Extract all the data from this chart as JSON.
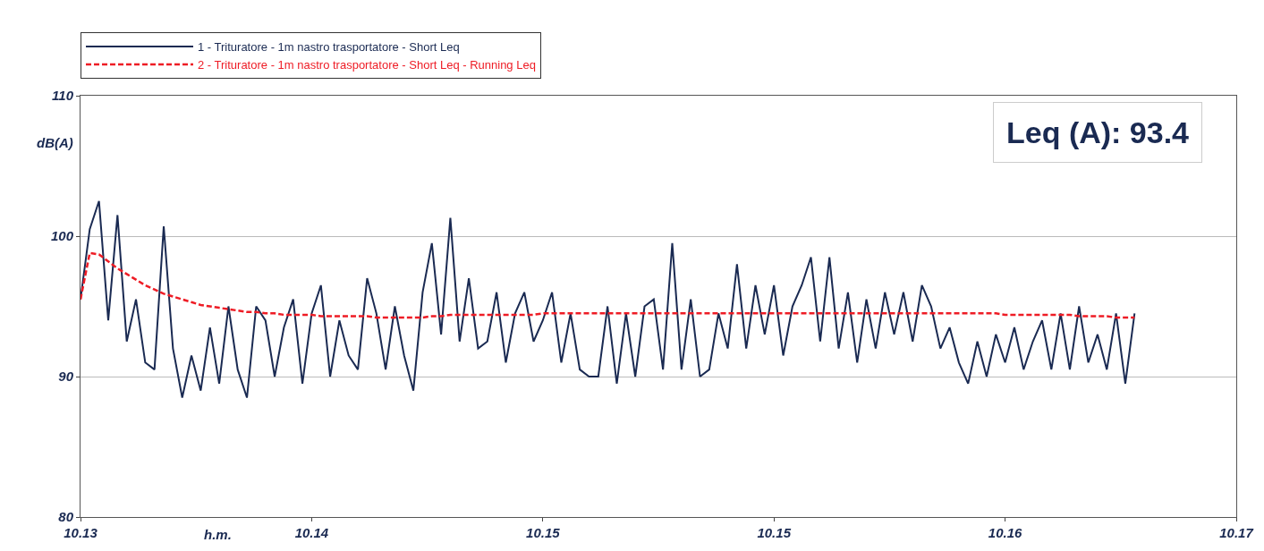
{
  "chart_data": {
    "type": "line",
    "xlabel": "h.m.",
    "ylabel": "dB(A)",
    "annotations": [
      "Leq (A): 93.4"
    ],
    "categories": [
      "10.13",
      null,
      null,
      null,
      null,
      null,
      null,
      null,
      null,
      null,
      null,
      null,
      null,
      null,
      null,
      null,
      null,
      null,
      null,
      null,
      null,
      null,
      null,
      null,
      null,
      "10.14",
      null,
      null,
      null,
      null,
      null,
      null,
      null,
      null,
      null,
      null,
      null,
      null,
      null,
      null,
      null,
      null,
      null,
      null,
      null,
      null,
      null,
      null,
      null,
      null,
      "10.15",
      null,
      null,
      null,
      null,
      null,
      null,
      null,
      null,
      null,
      null,
      null,
      null,
      null,
      null,
      null,
      null,
      null,
      null,
      null,
      null,
      null,
      null,
      null,
      null,
      "10.15",
      null,
      null,
      null,
      null,
      null,
      null,
      null,
      null,
      null,
      null,
      null,
      null,
      null,
      null,
      null,
      null,
      null,
      null,
      null,
      null,
      null,
      null,
      null,
      null,
      "10.16",
      null,
      null,
      null,
      null,
      null,
      null,
      null,
      null,
      null,
      null,
      null,
      null,
      null,
      null,
      null,
      null,
      null,
      null,
      null,
      null,
      null,
      null,
      null,
      null,
      "10.17"
    ],
    "ylim": [
      80,
      110
    ],
    "yticks": [
      80,
      90,
      100,
      110
    ],
    "grid": "y",
    "legend": "top",
    "marker": "none",
    "series": [
      {
        "name": "1 - Trituratore - 1m nastro trasportatore - Short Leq",
        "color": "#1a2a52",
        "line_style": "solid",
        "values": [
          95.5,
          100.5,
          102.5,
          94,
          101.5,
          92.5,
          95.5,
          91,
          90.5,
          100.7,
          92,
          88.5,
          91.5,
          89,
          93.5,
          89.5,
          95,
          90.5,
          88.5,
          95,
          94,
          90,
          93.5,
          95.5,
          89.5,
          94.5,
          96.5,
          90,
          94,
          91.5,
          90.5,
          97,
          94.5,
          90.5,
          95,
          91.5,
          89,
          96,
          99.5,
          93,
          101.3,
          92.5,
          97,
          92,
          92.5,
          96,
          91,
          94.5,
          96,
          92.5,
          94,
          96,
          91,
          94.5,
          90.5,
          90,
          90,
          95,
          89.5,
          94.5,
          90,
          95,
          95.5,
          90.5,
          99.5,
          90.5,
          95.5,
          90,
          90.5,
          94.5,
          92,
          98,
          92,
          96.5,
          93,
          96.5,
          91.5,
          95,
          96.5,
          98.5,
          92.5,
          98.5,
          92,
          96,
          91,
          95.5,
          92,
          96,
          93,
          96,
          92.5,
          96.5,
          95,
          92,
          93.5,
          91,
          89.5,
          92.5,
          90,
          93,
          91,
          93.5,
          90.5,
          92.5,
          94,
          90.5,
          94.5,
          90.5,
          95,
          91,
          93,
          90.5,
          94.5,
          89.5,
          94.5,
          null,
          null,
          null,
          null,
          null,
          null,
          null,
          null,
          null,
          null,
          null
        ]
      },
      {
        "name": "2 - Trituratore - 1m nastro trasportatore - Short Leq - Running Leq",
        "color": "#ee1c25",
        "line_style": "dashed",
        "values": [
          95.5,
          98.8,
          98.7,
          98.2,
          97.7,
          97.3,
          96.9,
          96.5,
          96.2,
          95.9,
          95.7,
          95.5,
          95.3,
          95.1,
          95.0,
          94.9,
          94.8,
          94.7,
          94.6,
          94.6,
          94.5,
          94.5,
          94.4,
          94.4,
          94.4,
          94.4,
          94.3,
          94.3,
          94.3,
          94.3,
          94.3,
          94.3,
          94.2,
          94.2,
          94.2,
          94.2,
          94.2,
          94.2,
          94.3,
          94.3,
          94.4,
          94.4,
          94.4,
          94.4,
          94.4,
          94.4,
          94.4,
          94.4,
          94.4,
          94.4,
          94.5,
          94.5,
          94.5,
          94.5,
          94.5,
          94.5,
          94.5,
          94.5,
          94.5,
          94.5,
          94.5,
          94.5,
          94.5,
          94.5,
          94.5,
          94.5,
          94.5,
          94.5,
          94.5,
          94.5,
          94.5,
          94.5,
          94.5,
          94.5,
          94.5,
          94.5,
          94.5,
          94.5,
          94.5,
          94.5,
          94.5,
          94.5,
          94.5,
          94.5,
          94.5,
          94.5,
          94.5,
          94.5,
          94.5,
          94.5,
          94.5,
          94.5,
          94.5,
          94.5,
          94.5,
          94.5,
          94.5,
          94.5,
          94.5,
          94.5,
          94.4,
          94.4,
          94.4,
          94.4,
          94.4,
          94.4,
          94.4,
          94.4,
          94.3,
          94.3,
          94.3,
          94.3,
          94.2,
          94.2,
          94.2,
          null,
          null,
          null,
          null,
          null,
          null,
          null,
          null,
          null,
          null,
          null
        ]
      }
    ]
  }
}
